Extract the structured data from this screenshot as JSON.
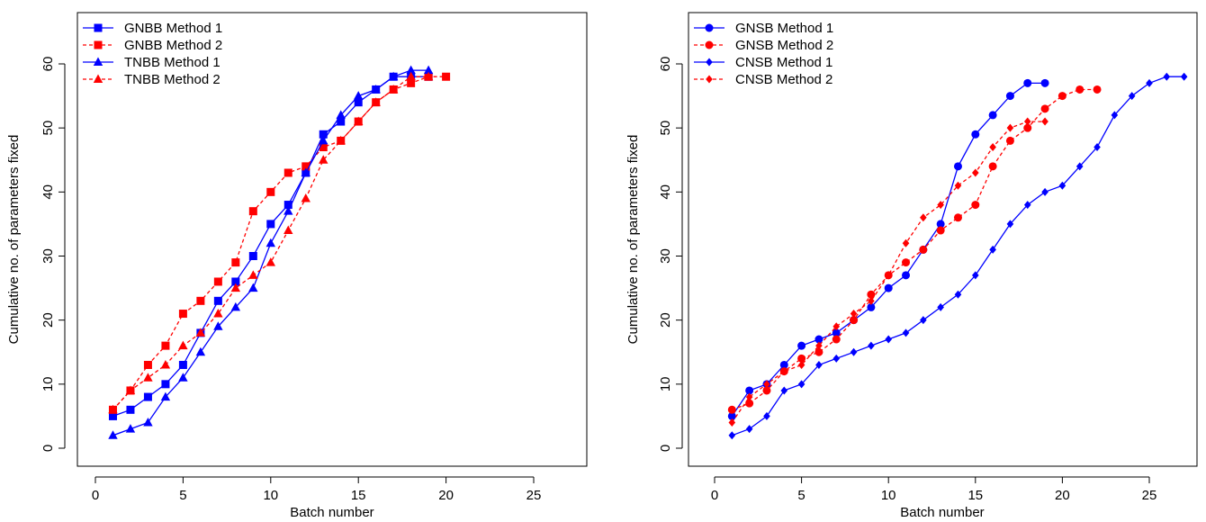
{
  "chart_data": [
    {
      "type": "line",
      "title": "",
      "xlabel": "Batch number",
      "ylabel": "Cumulative no. of parameters fixed",
      "xlim": [
        -1,
        27.5
      ],
      "ylim": [
        -2.5,
        67.5
      ],
      "xticks": [
        0,
        5,
        10,
        15,
        20,
        25
      ],
      "yticks": [
        0,
        10,
        20,
        30,
        40,
        50,
        60
      ],
      "grid": false,
      "legend_position": "top-left",
      "series": [
        {
          "name": "GNBB Method 1",
          "color": "#0000ff",
          "line": "solid",
          "marker": "square",
          "x": [
            1,
            2,
            3,
            4,
            5,
            6,
            7,
            8,
            9,
            10,
            11,
            12,
            13,
            14,
            15,
            16,
            17,
            18,
            19
          ],
          "y": [
            5,
            6,
            8,
            10,
            13,
            18,
            23,
            26,
            30,
            35,
            38,
            43,
            49,
            51,
            54,
            56,
            58,
            58,
            58
          ]
        },
        {
          "name": "GNBB Method 2",
          "color": "#ff0000",
          "line": "dashed",
          "marker": "square",
          "x": [
            1,
            2,
            3,
            4,
            5,
            6,
            7,
            8,
            9,
            10,
            11,
            12,
            13,
            14,
            15,
            16,
            17,
            18,
            19,
            20
          ],
          "y": [
            6,
            9,
            13,
            16,
            21,
            23,
            26,
            29,
            37,
            40,
            43,
            44,
            47,
            48,
            51,
            54,
            56,
            57,
            58,
            58
          ]
        },
        {
          "name": "TNBB Method 1",
          "color": "#0000ff",
          "line": "solid",
          "marker": "triangle",
          "x": [
            1,
            2,
            3,
            4,
            5,
            6,
            7,
            8,
            9,
            10,
            11,
            12,
            13,
            14,
            15,
            16,
            17,
            18,
            19
          ],
          "y": [
            2,
            3,
            4,
            8,
            11,
            15,
            19,
            22,
            25,
            32,
            37,
            43,
            48,
            52,
            55,
            56,
            58,
            59,
            59
          ]
        },
        {
          "name": "TNBB Method 2",
          "color": "#ff0000",
          "line": "dashed",
          "marker": "triangle",
          "x": [
            1,
            2,
            3,
            4,
            5,
            6,
            7,
            8,
            9,
            10,
            11,
            12,
            13,
            14,
            15,
            16,
            17,
            18,
            19
          ],
          "y": [
            6,
            9,
            11,
            13,
            16,
            18,
            21,
            25,
            27,
            29,
            34,
            39,
            45,
            48,
            51,
            54,
            56,
            58,
            58
          ]
        }
      ]
    },
    {
      "type": "line",
      "title": "",
      "xlabel": "Batch number",
      "ylabel": "Cumulative no. of parameters fixed",
      "xlim": [
        -1,
        28
      ],
      "ylim": [
        -2.5,
        67.5
      ],
      "xticks": [
        0,
        5,
        10,
        15,
        20,
        25
      ],
      "yticks": [
        0,
        10,
        20,
        30,
        40,
        50,
        60
      ],
      "grid": false,
      "legend_position": "top-left",
      "series": [
        {
          "name": "GNSB Method 1",
          "color": "#0000ff",
          "line": "solid",
          "marker": "circle",
          "x": [
            1,
            2,
            3,
            4,
            5,
            6,
            7,
            8,
            9,
            10,
            11,
            12,
            13,
            14,
            15,
            16,
            17,
            18,
            19
          ],
          "y": [
            5,
            9,
            10,
            13,
            16,
            17,
            18,
            20,
            22,
            25,
            27,
            31,
            35,
            44,
            49,
            52,
            55,
            57,
            57
          ]
        },
        {
          "name": "GNSB Method 2",
          "color": "#ff0000",
          "line": "dashed",
          "marker": "circle",
          "x": [
            1,
            2,
            3,
            4,
            5,
            6,
            7,
            8,
            9,
            10,
            11,
            12,
            13,
            14,
            15,
            16,
            17,
            18,
            19,
            20,
            21,
            22
          ],
          "y": [
            6,
            7,
            9,
            12,
            14,
            15,
            17,
            20,
            24,
            27,
            29,
            31,
            34,
            36,
            38,
            44,
            48,
            50,
            53,
            55,
            56,
            56
          ]
        },
        {
          "name": "CNSB Method 1",
          "color": "#0000ff",
          "line": "solid",
          "marker": "diamond",
          "x": [
            1,
            2,
            3,
            4,
            5,
            6,
            7,
            8,
            9,
            10,
            11,
            12,
            13,
            14,
            15,
            16,
            17,
            18,
            19,
            20,
            21,
            22,
            23,
            24,
            25,
            26,
            27
          ],
          "y": [
            2,
            3,
            5,
            9,
            10,
            13,
            14,
            15,
            16,
            17,
            18,
            20,
            22,
            24,
            27,
            31,
            35,
            38,
            40,
            41,
            44,
            47,
            52,
            55,
            57,
            58,
            58
          ]
        },
        {
          "name": "CNSB Method 2",
          "color": "#ff0000",
          "line": "dashed",
          "marker": "diamond",
          "x": [
            1,
            2,
            3,
            4,
            5,
            6,
            7,
            8,
            9,
            10,
            11,
            12,
            13,
            14,
            15,
            16,
            17,
            18,
            19
          ],
          "y": [
            4,
            8,
            10,
            12,
            13,
            16,
            19,
            21,
            23,
            27,
            32,
            36,
            38,
            41,
            43,
            47,
            50,
            51,
            51
          ]
        }
      ]
    }
  ]
}
